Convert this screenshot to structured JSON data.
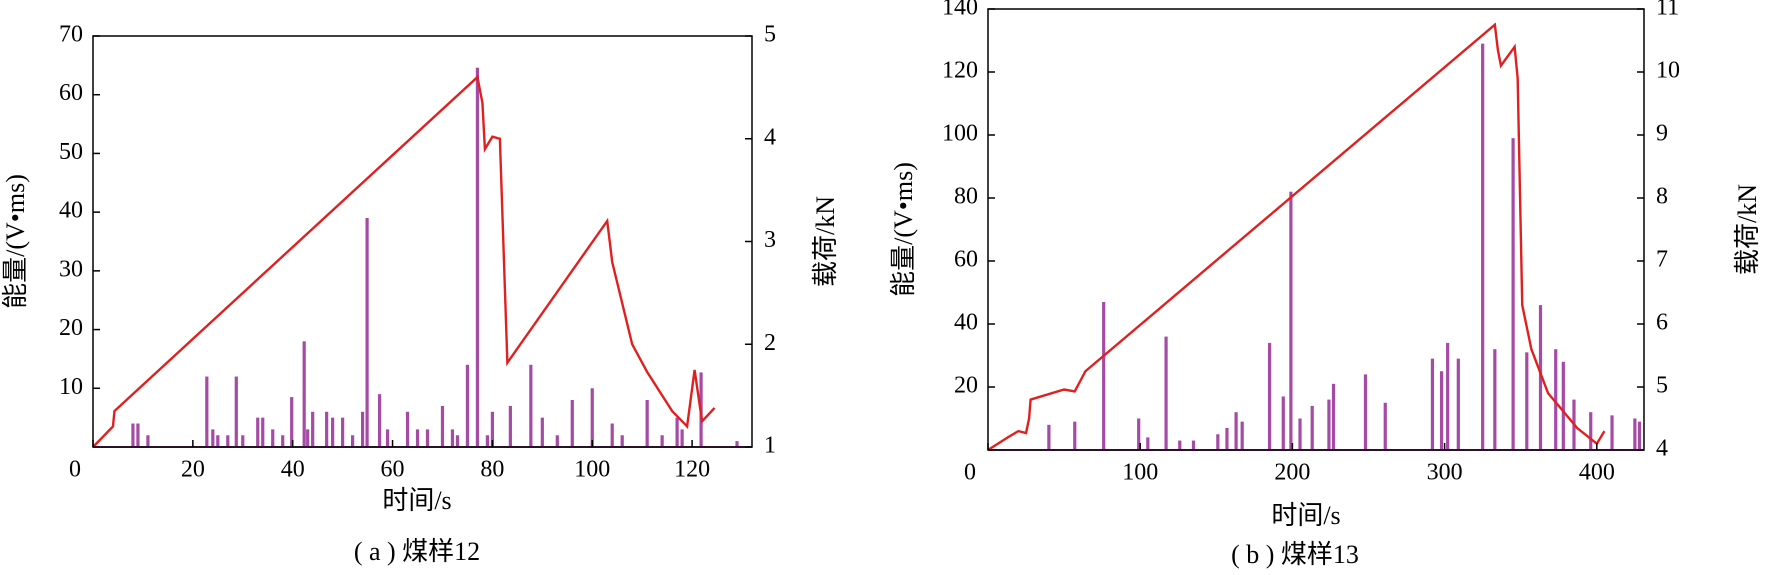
{
  "chart_data": [
    {
      "type": "combo",
      "title": "( a ) 煤样12",
      "x_label": "时间/s",
      "y_label": "能量/(V•ms)",
      "y2_label": "载荷/kN",
      "xlim": [
        0,
        132
      ],
      "ylim": [
        0,
        70
      ],
      "y2lim": [
        1,
        5
      ],
      "xticks": [
        0,
        20,
        40,
        60,
        80,
        100,
        120
      ],
      "yticks": [
        10,
        20,
        30,
        40,
        50,
        60,
        70
      ],
      "y2ticks": [
        1,
        2,
        3,
        4,
        5
      ],
      "series": [
        {
          "type": "bar",
          "color": "#a54aa5",
          "x": [
            8,
            9,
            11,
            22.8,
            24,
            25,
            27,
            28.7,
            30,
            33,
            34,
            36,
            38,
            39.8,
            42.3,
            43,
            44,
            46.8,
            48,
            50,
            52,
            54,
            54.9,
            57.4,
            59,
            63,
            65,
            67,
            70,
            72,
            73,
            75,
            77,
            79,
            80,
            83.6,
            87.7,
            90,
            93,
            96,
            100,
            104,
            106,
            111,
            114,
            117,
            118,
            121.8,
            129
          ],
          "values": [
            4,
            4,
            2,
            12,
            3,
            2,
            2,
            12,
            2,
            5,
            5,
            3,
            2,
            8.5,
            18,
            3,
            6,
            6,
            5,
            5,
            2,
            6,
            39,
            9,
            3,
            6,
            3,
            3,
            7,
            3,
            2,
            14,
            64.6,
            2,
            6,
            7,
            14,
            5,
            2,
            8,
            10,
            4,
            2,
            8,
            2,
            5,
            3,
            12.7,
            1
          ]
        },
        {
          "type": "line",
          "axis": "y2",
          "color": "#e02020",
          "x": [
            0,
            4,
            4.3,
            77,
            78,
            78.5,
            80,
            81.5,
            83,
            103,
            104,
            108,
            111,
            116,
            119,
            120.5,
            122,
            124.5
          ],
          "values": [
            1,
            1.2,
            1.35,
            4.6,
            4.35,
            3.9,
            4.02,
            4.0,
            1.82,
            3.2,
            2.8,
            2.0,
            1.73,
            1.35,
            1.2,
            1.75,
            1.25,
            1.38
          ]
        }
      ]
    },
    {
      "type": "combo",
      "title": "( b ) 煤样13",
      "x_label": "时间/s",
      "y_label": "能量/(V•ms)",
      "y2_label": "载荷/kN",
      "xlim": [
        0,
        431
      ],
      "ylim": [
        0,
        140
      ],
      "y2lim": [
        4,
        11
      ],
      "xticks": [
        0,
        100,
        200,
        300,
        400
      ],
      "yticks": [
        20,
        40,
        60,
        80,
        100,
        120,
        140
      ],
      "y2ticks": [
        4,
        5,
        6,
        7,
        8,
        9,
        10,
        11
      ],
      "series": [
        {
          "type": "bar",
          "color": "#a54aa5",
          "x": [
            40,
            57,
            76,
            99,
            105,
            117,
            126,
            135,
            151,
            157,
            163,
            167,
            185,
            194,
            199,
            205,
            213,
            224,
            227,
            248,
            261,
            292,
            298,
            302,
            309,
            325,
            333,
            345,
            354,
            363,
            373,
            378,
            385,
            396,
            410,
            425,
            428
          ],
          "values": [
            8,
            9,
            47,
            10,
            4,
            36,
            3,
            3,
            5,
            7,
            12,
            9,
            34,
            17,
            82,
            10,
            14,
            16,
            21,
            24,
            15,
            29,
            25,
            34,
            29,
            129,
            32,
            99,
            31,
            46,
            32,
            28,
            16,
            12,
            11,
            10,
            9
          ]
        },
        {
          "type": "line",
          "axis": "y2",
          "color": "#e02020",
          "x": [
            0,
            13,
            20,
            25,
            27,
            28,
            50,
            57,
            64,
            333,
            335,
            337,
            346,
            348,
            351,
            357,
            368,
            375,
            387,
            400,
            405
          ],
          "values": [
            4.0,
            4.2,
            4.3,
            4.27,
            4.5,
            4.8,
            4.96,
            4.93,
            5.25,
            10.75,
            10.35,
            10.1,
            10.4,
            9.9,
            6.3,
            5.6,
            4.9,
            4.7,
            4.35,
            4.1,
            4.3
          ]
        }
      ]
    }
  ]
}
